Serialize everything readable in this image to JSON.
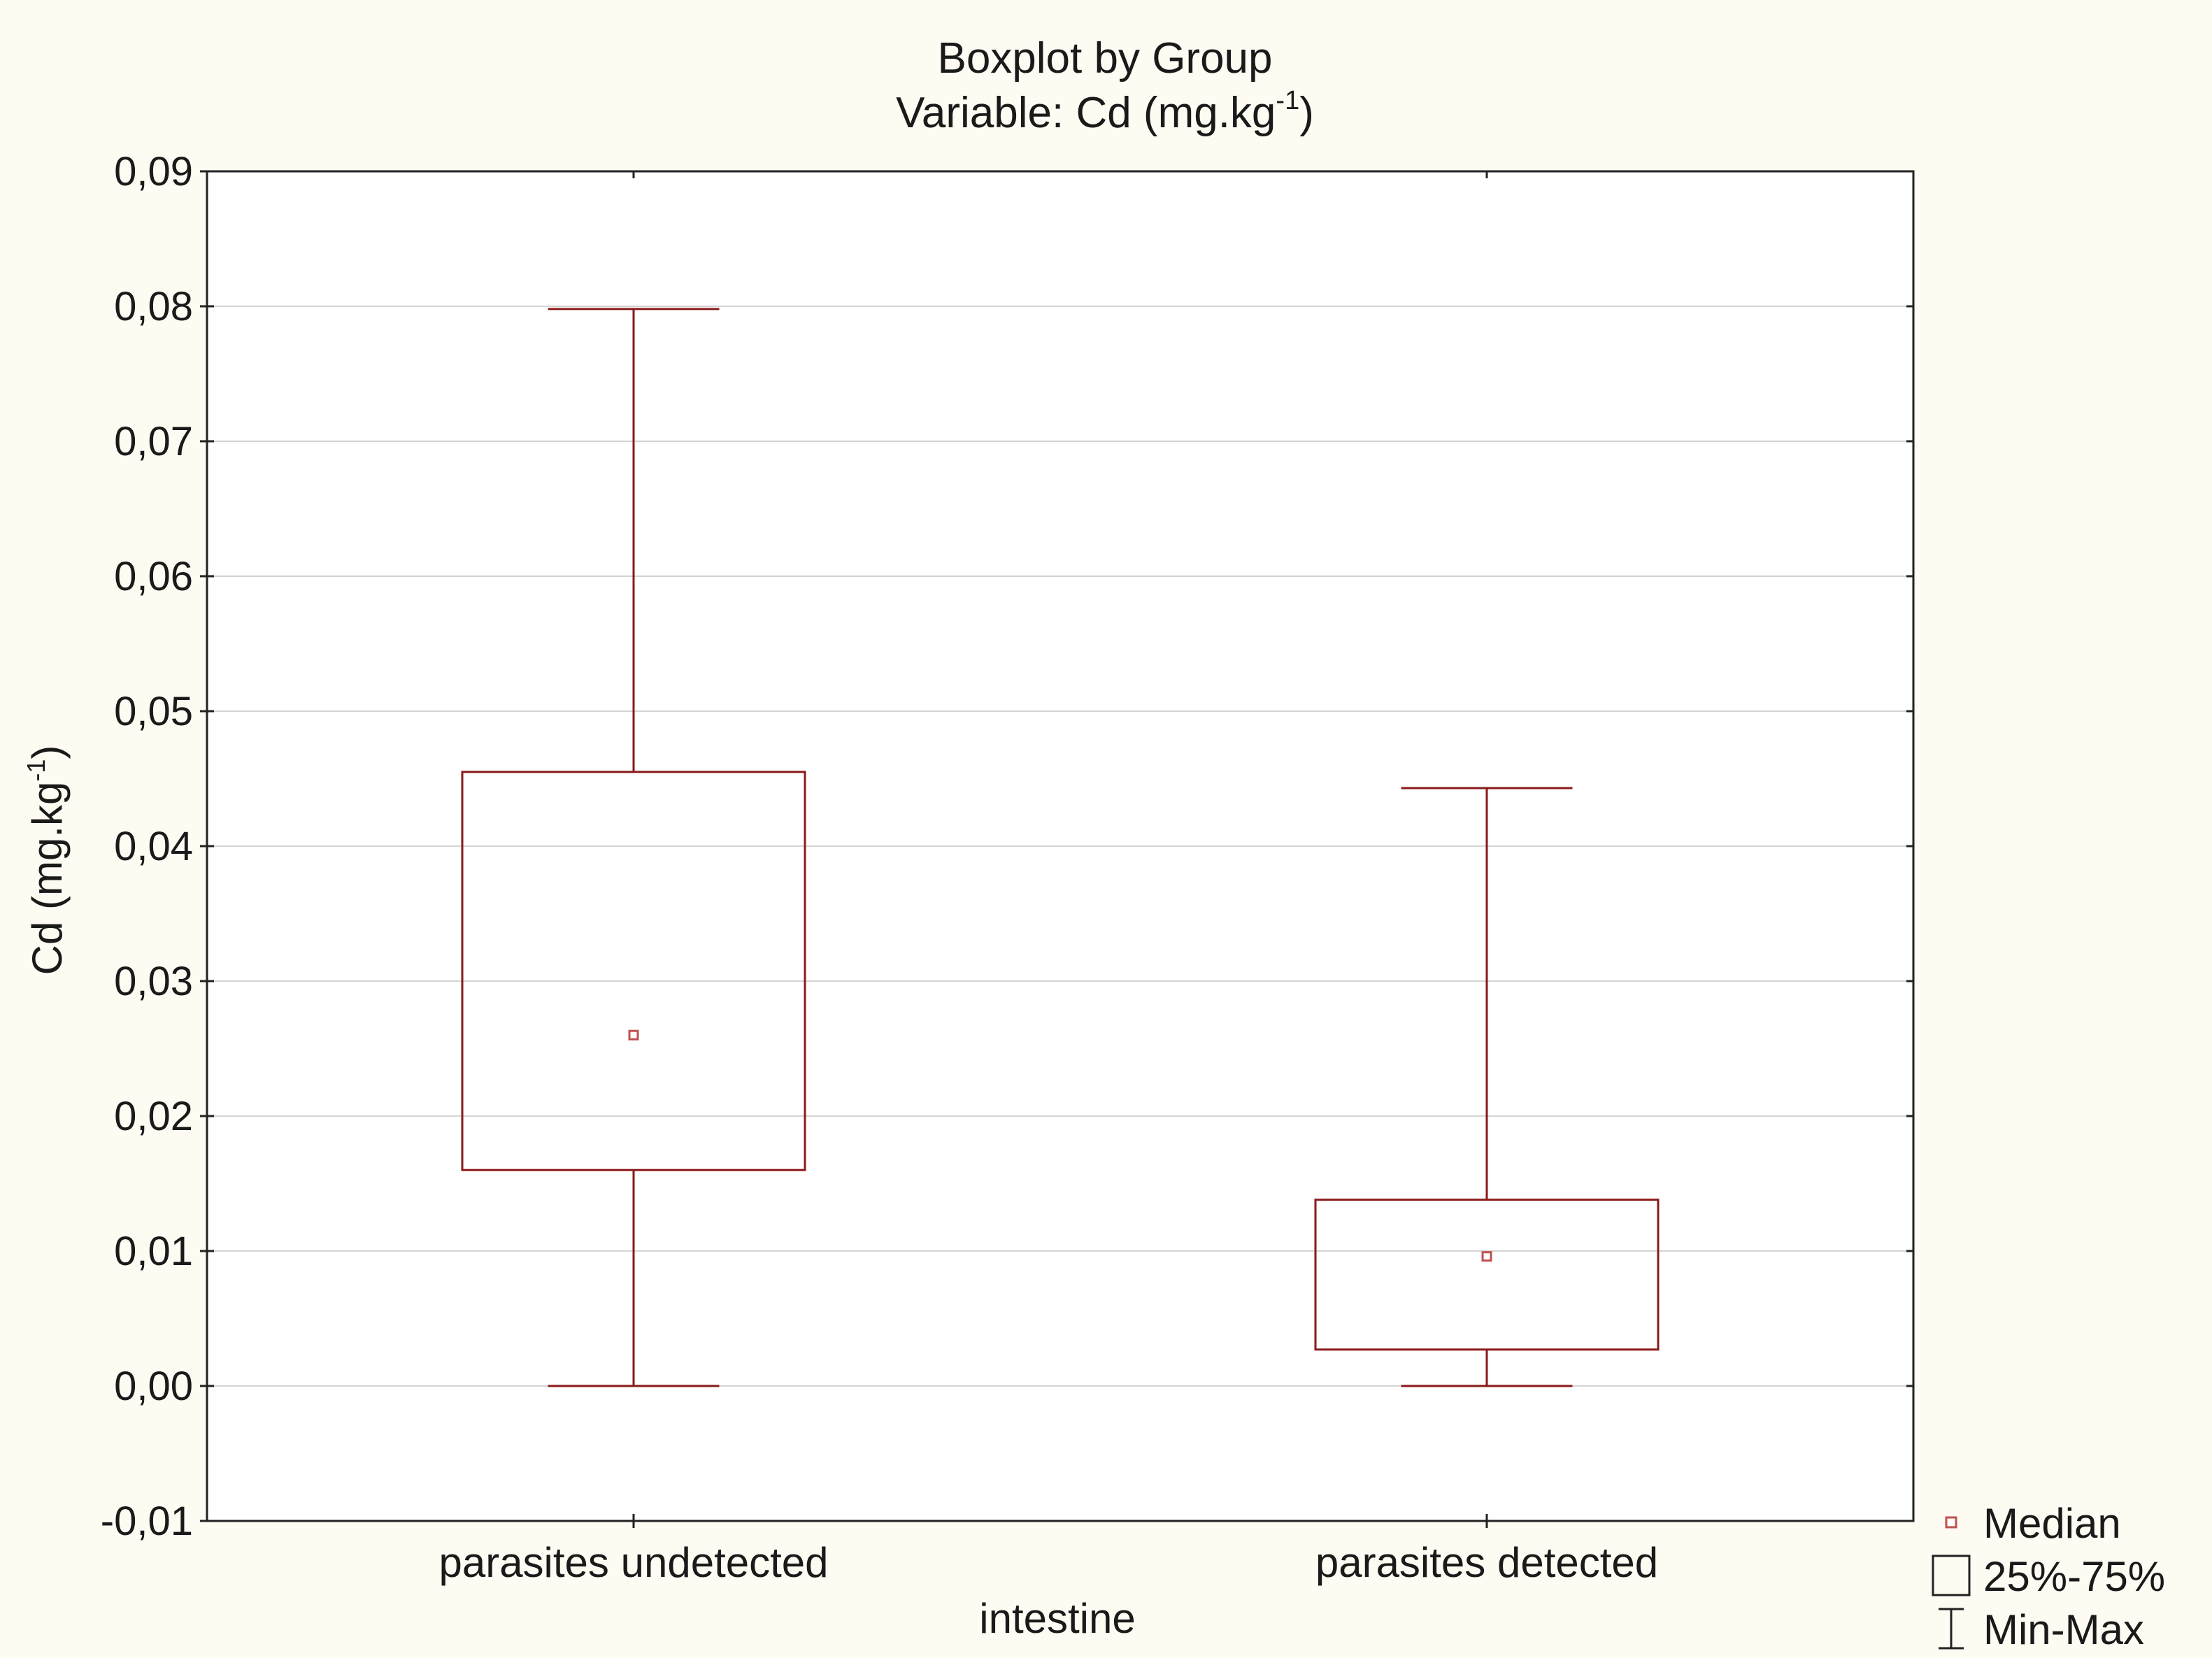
{
  "chart_data": {
    "type": "box",
    "title": "Boxplot by Group",
    "subtitle": "Variable: Cd (mg.kg-1)",
    "subtitle_text": "Variable: Cd (mg.kg",
    "subtitle_sup": "-1",
    "subtitle_tail": ")",
    "xlabel": "intestine",
    "ylabel": "Cd (mg.kg-1)",
    "ylabel_text": "Cd (mg.kg",
    "ylabel_sup": "-1",
    "ylabel_tail": ")",
    "ylim": [
      -0.01,
      0.09
    ],
    "yticks": [
      -0.01,
      0,
      0.01,
      0.02,
      0.03,
      0.04,
      0.05,
      0.06,
      0.07,
      0.08,
      0.09
    ],
    "ytick_labels": [
      "-0,01",
      "0,00",
      "0,01",
      "0,02",
      "0,03",
      "0,04",
      "0,05",
      "0,06",
      "0,07",
      "0,08",
      "0,09"
    ],
    "grid": true,
    "legend_position": "bottom-right",
    "categories": [
      "parasites undetected",
      "parasites detected"
    ],
    "series": [
      {
        "category": "parasites undetected",
        "min": 0.0,
        "q1": 0.016,
        "median": 0.026,
        "q3": 0.0455,
        "max": 0.0798
      },
      {
        "category": "parasites detected",
        "min": 0.0,
        "q1": 0.0027,
        "median": 0.0096,
        "q3": 0.0138,
        "max": 0.0443
      }
    ],
    "legend": [
      {
        "symbol": "median-marker",
        "label": "Median"
      },
      {
        "symbol": "box",
        "label": "25%-75%"
      },
      {
        "symbol": "whisker",
        "label": "Min-Max"
      }
    ],
    "colors": {
      "box_stroke": "#8b1a1a",
      "median_marker": "#c05050",
      "grid": "#d4d4d4",
      "axis": "#222222",
      "background": "#fdfbf2",
      "plot_background": "#ffffff"
    }
  }
}
